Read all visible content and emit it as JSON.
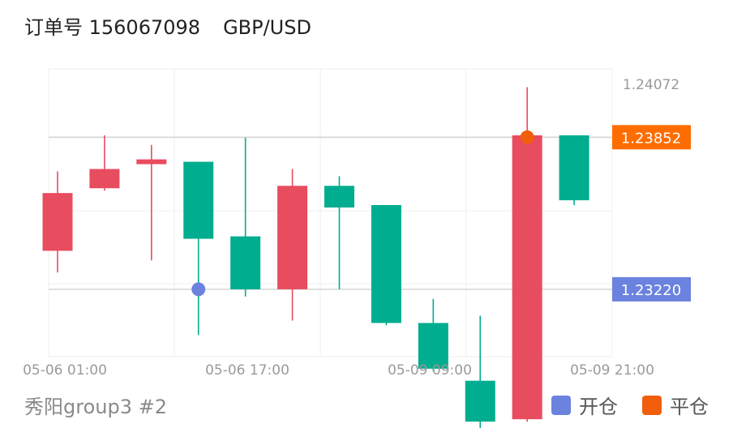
{
  "header": {
    "order_label": "订单号 156067098",
    "symbol": "GBP/USD"
  },
  "footer": {
    "account": "秀阳group3 #2"
  },
  "legend": {
    "open_label": "开仓",
    "close_label": "平仓",
    "open_color": "#6b82de",
    "close_color": "#f25f0c"
  },
  "chart_data": {
    "type": "candlestick",
    "x_tick_labels": [
      "05-06 01:00",
      "05-06 17:00",
      "05-09 09:00",
      "05-09 21:00"
    ],
    "y_tick_labels": [
      "1.24072"
    ],
    "ylim": [
      1.2294,
      1.24136
    ],
    "up_color": "#e84c5f",
    "down_color": "#00ad8f",
    "candles": [
      {
        "dir": "up",
        "open": 1.2338,
        "close": 1.2362,
        "high": 1.2371,
        "low": 1.2329
      },
      {
        "dir": "up",
        "open": 1.2364,
        "close": 1.2372,
        "high": 1.2386,
        "low": 1.2363
      },
      {
        "dir": "up",
        "open": 1.2374,
        "close": 1.2376,
        "high": 1.2382,
        "low": 1.2334
      },
      {
        "dir": "down",
        "open": 1.2375,
        "close": 1.2343,
        "high": 1.2375,
        "low": 1.2303
      },
      {
        "dir": "down",
        "open": 1.2344,
        "close": 1.2322,
        "high": 1.2385,
        "low": 1.2319
      },
      {
        "dir": "up",
        "open": 1.2322,
        "close": 1.2365,
        "high": 1.2372,
        "low": 1.2309
      },
      {
        "dir": "down",
        "open": 1.2365,
        "close": 1.2356,
        "high": 1.2369,
        "low": 1.2322
      },
      {
        "dir": "down",
        "open": 1.2357,
        "close": 1.2308,
        "high": 1.2357,
        "low": 1.2307
      },
      {
        "dir": "down",
        "open": 1.2308,
        "close": 1.2289,
        "high": 1.2318,
        "low": 1.2288
      },
      {
        "dir": "down",
        "open": 1.2284,
        "close": 1.2267,
        "high": 1.2311,
        "low": 1.2261
      },
      {
        "dir": "up",
        "open": 1.2268,
        "close": 1.2386,
        "high": 1.2406,
        "low": 1.2267
      },
      {
        "dir": "down",
        "open": 1.2386,
        "close": 1.2359,
        "high": 1.2386,
        "low": 1.2357
      }
    ],
    "open_marker": {
      "candle_index": 3,
      "price": 1.2322
    },
    "close_marker": {
      "candle_index": 10,
      "price": 1.23852
    },
    "price_labels": [
      {
        "value": "1.23852",
        "price": 1.23852,
        "color": "#ff6d00",
        "kind": "close"
      },
      {
        "value": "1.23220",
        "price": 1.2322,
        "color": "#6b82de",
        "kind": "open"
      }
    ]
  }
}
